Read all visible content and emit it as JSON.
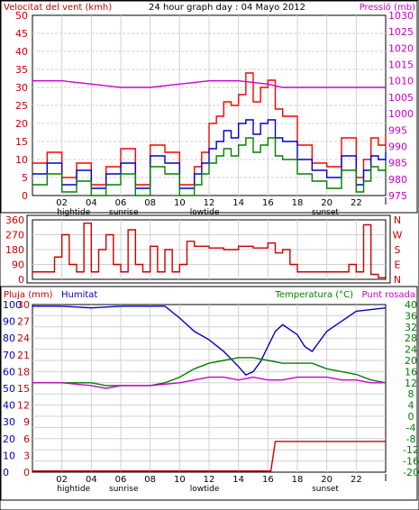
{
  "chart_data": [
    {
      "type": "line",
      "title": "24 hour graph day : 04 Mayo 2012",
      "ylabel_left": "Velocitat del vent (kmh)",
      "ylabel_right": "Pressió (mb)",
      "ylim_left": [
        0,
        50
      ],
      "ylim_right": [
        975,
        1030
      ],
      "left_ticks": [
        "0",
        "5",
        "10",
        "15",
        "20",
        "25",
        "30",
        "35",
        "40",
        "45",
        "50"
      ],
      "right_ticks": [
        "975",
        "980",
        "985",
        "990",
        "995",
        "1000",
        "1005",
        "1010",
        "1015",
        "1020",
        "1025",
        "1030"
      ],
      "x_tick_labels": [
        "02",
        "04",
        "06",
        "08",
        "10",
        "12",
        "14",
        "16",
        "18",
        "20",
        "22"
      ],
      "x_markers": [
        {
          "label": "hightide",
          "hour": 2.8
        },
        {
          "label": "sunrise",
          "hour": 6.2
        },
        {
          "label": "lowtide",
          "hour": 11.7
        },
        {
          "label": "sunset",
          "hour": 19.9
        }
      ],
      "x_range_hours": [
        0,
        24
      ],
      "series": [
        {
          "key": "gust",
          "color": "#ff0000",
          "x": [
            0,
            1,
            2,
            3,
            4,
            5,
            6,
            7,
            8,
            9,
            10,
            11,
            11.5,
            12,
            12.5,
            13,
            13.5,
            14,
            14.5,
            15,
            15.5,
            16,
            16.5,
            17,
            18,
            19,
            20,
            21,
            22,
            22.5,
            23,
            23.5,
            24
          ],
          "values": [
            9,
            12,
            5,
            9,
            3,
            8,
            13,
            3,
            14,
            12,
            3,
            8,
            12,
            20,
            22,
            26,
            25,
            28,
            34,
            26,
            30,
            32,
            24,
            22,
            14,
            9,
            8,
            16,
            5,
            10,
            16,
            14,
            17
          ]
        },
        {
          "key": "average",
          "color": "#0000cc",
          "x": [
            0,
            1,
            2,
            3,
            4,
            5,
            6,
            7,
            8,
            9,
            10,
            11,
            11.5,
            12,
            12.5,
            13,
            13.5,
            14,
            14.5,
            15,
            15.5,
            16,
            16.5,
            17,
            18,
            19,
            20,
            21,
            22,
            22.5,
            23,
            23.5,
            24
          ],
          "values": [
            6,
            9,
            3,
            7,
            2,
            6,
            9,
            2,
            11,
            9,
            2,
            6,
            9,
            13,
            15,
            18,
            16,
            20,
            21,
            17,
            20,
            21,
            16,
            15,
            10,
            7,
            5,
            11,
            3,
            7,
            11,
            10,
            12
          ]
        },
        {
          "key": "minimum",
          "color": "#008000",
          "x": [
            0,
            1,
            2,
            3,
            4,
            5,
            6,
            7,
            8,
            9,
            10,
            11,
            11.5,
            12,
            12.5,
            13,
            13.5,
            14,
            14.5,
            15,
            15.5,
            16,
            16.5,
            17,
            18,
            19,
            20,
            21,
            22,
            22.5,
            23,
            23.5,
            24
          ],
          "values": [
            3,
            6,
            1,
            4,
            0,
            3,
            6,
            0,
            8,
            6,
            0,
            3,
            6,
            9,
            11,
            13,
            11,
            14,
            16,
            12,
            14,
            16,
            11,
            10,
            6,
            4,
            2,
            7,
            1,
            4,
            8,
            7,
            9
          ]
        },
        {
          "key": "pressure",
          "color": "#cc00cc",
          "axis": "right",
          "x": [
            0,
            2,
            4,
            6,
            8,
            10,
            12,
            14,
            16,
            17,
            18,
            20,
            22,
            24
          ],
          "values": [
            1010,
            1010,
            1009,
            1008,
            1008,
            1009,
            1010,
            1010,
            1009,
            1008,
            1008,
            1008,
            1008,
            1008
          ]
        }
      ]
    },
    {
      "type": "line",
      "ylabel_right": "N W S E N",
      "direction_letters": [
        "N",
        "W",
        "S",
        "E",
        "N"
      ],
      "left_ticks": [
        "0",
        "90",
        "180",
        "270",
        "360"
      ],
      "ylim": [
        0,
        360
      ],
      "x_range_hours": [
        0,
        24
      ],
      "series": [
        {
          "key": "direction",
          "color": "#cc0000",
          "x": [
            0,
            1,
            1.5,
            2,
            2.5,
            3,
            3.5,
            4,
            4.5,
            5,
            5.5,
            6,
            6.5,
            7,
            7.5,
            8,
            8.5,
            9,
            9.5,
            10,
            10.5,
            11,
            12,
            13,
            14,
            15,
            16,
            16.5,
            17,
            17.5,
            18,
            19,
            20,
            21,
            21.5,
            22,
            22.5,
            23,
            23.5,
            24
          ],
          "values": [
            45,
            45,
            135,
            270,
            90,
            45,
            340,
            45,
            180,
            270,
            90,
            45,
            300,
            90,
            45,
            200,
            45,
            180,
            45,
            90,
            230,
            200,
            190,
            180,
            200,
            190,
            220,
            160,
            180,
            90,
            45,
            45,
            45,
            45,
            90,
            45,
            330,
            30,
            10,
            5
          ]
        }
      ]
    },
    {
      "type": "line",
      "ylabel_left": "Pluja (mm)",
      "ylabel_left2": "Humitat",
      "ylabel_right": "Temperatura (°C)",
      "ylabel_right2": "Punt rosada",
      "humidity_ticks": [
        "0",
        "10",
        "20",
        "30",
        "40",
        "50",
        "60",
        "70",
        "80",
        "90",
        "100"
      ],
      "rain_ticks": [
        "0",
        "3",
        "6",
        "9",
        "12",
        "15",
        "18",
        "21",
        "24",
        "27",
        "30"
      ],
      "temp_ticks": [
        "-20",
        "-16",
        "-12",
        "-8",
        "-4",
        "0",
        "4",
        "8",
        "12",
        "16",
        "20",
        "24",
        "28",
        "32",
        "36",
        "40"
      ],
      "ylim_humidity": [
        0,
        100
      ],
      "ylim_rain": [
        0,
        30
      ],
      "ylim_temp": [
        -20,
        40
      ],
      "x_tick_labels": [
        "02",
        "04",
        "06",
        "08",
        "10",
        "12",
        "14",
        "16",
        "18",
        "20",
        "22"
      ],
      "x_markers": [
        {
          "label": "hightide",
          "hour": 2.8
        },
        {
          "label": "sunrise",
          "hour": 6.2
        },
        {
          "label": "lowtide",
          "hour": 11.7
        },
        {
          "label": "sunset",
          "hour": 19.9
        }
      ],
      "x_range_hours": [
        0,
        24
      ],
      "series": [
        {
          "key": "humidity",
          "color": "#0000cc",
          "axis": "humidity",
          "x": [
            0,
            2,
            4,
            6,
            8,
            9,
            10,
            11,
            12,
            13,
            14,
            14.5,
            15,
            15.5,
            16,
            16.5,
            17,
            18,
            18.5,
            19,
            20,
            21,
            22,
            23,
            24
          ],
          "values": [
            99,
            99,
            98,
            99,
            99,
            99,
            92,
            84,
            79,
            72,
            63,
            58,
            60,
            66,
            75,
            84,
            88,
            82,
            75,
            72,
            84,
            90,
            96,
            97,
            98
          ]
        },
        {
          "key": "rain",
          "color": "#cc0000",
          "axis": "rain",
          "x": [
            0,
            16.2,
            16.5,
            24
          ],
          "values": [
            0.2,
            0.2,
            5.5,
            5.5
          ]
        },
        {
          "key": "temperature",
          "color": "#008000",
          "axis": "temp",
          "x": [
            0,
            2,
            4,
            5,
            6,
            8,
            9,
            10,
            11,
            12,
            13,
            14,
            15,
            16,
            17,
            18,
            19,
            20,
            21,
            22,
            23,
            24
          ],
          "values": [
            12,
            12,
            12,
            11,
            11,
            11,
            12,
            14,
            17,
            19,
            20,
            21,
            21,
            20,
            19,
            19,
            19,
            17,
            16,
            15,
            13,
            12
          ]
        },
        {
          "key": "dewpoint",
          "color": "#cc00cc",
          "axis": "temp",
          "x": [
            0,
            2,
            4,
            5,
            6,
            8,
            10,
            11,
            12,
            13,
            14,
            15,
            16,
            17,
            18,
            19,
            20,
            21,
            22,
            23,
            24
          ],
          "values": [
            12,
            12,
            11,
            10,
            11,
            11,
            12,
            13,
            14,
            14,
            13,
            14,
            13,
            13,
            14,
            14,
            14,
            13,
            13,
            12,
            12
          ]
        }
      ]
    }
  ]
}
